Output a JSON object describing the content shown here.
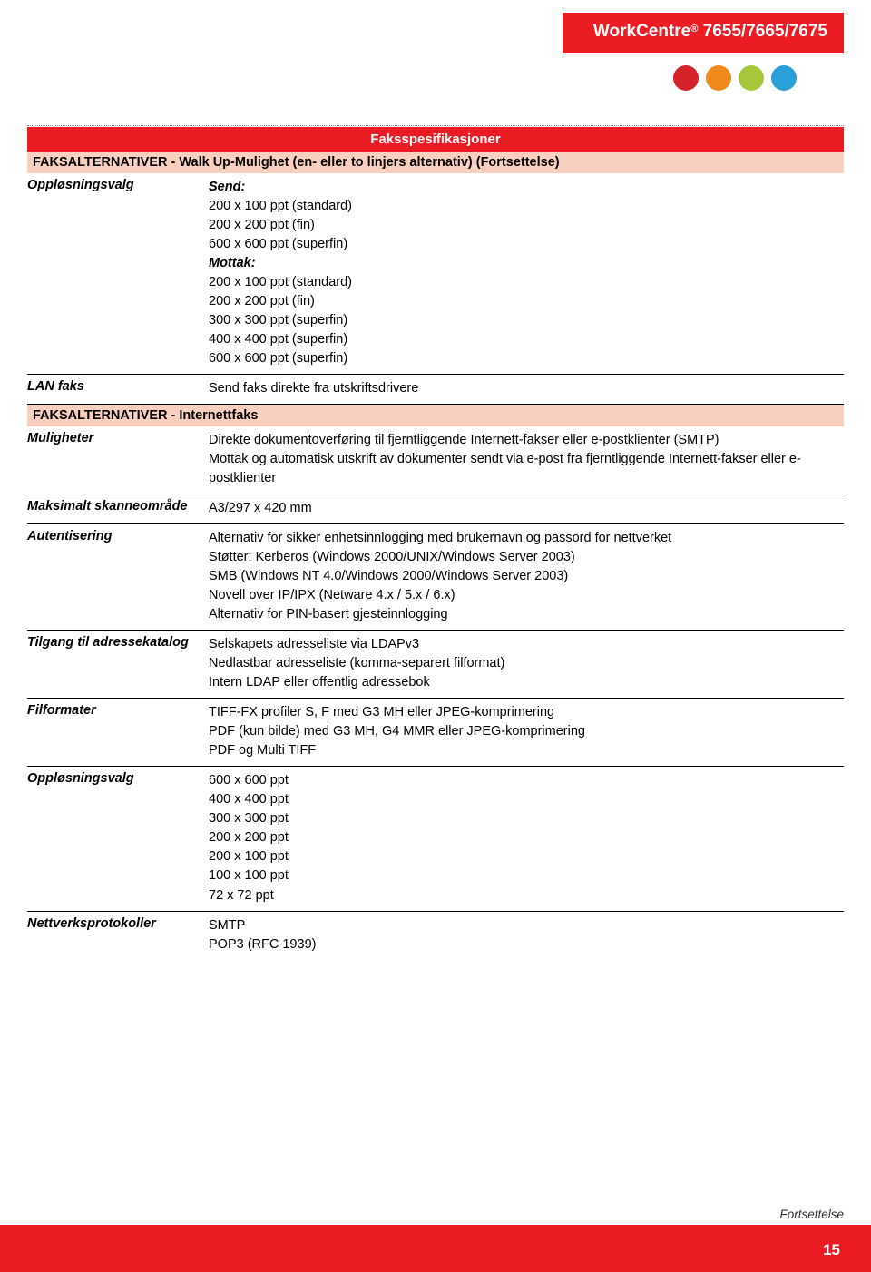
{
  "header": {
    "brand": "WorkCentre",
    "reg": "®",
    "models": " 7655/7665/7675",
    "dots": [
      "#d6232a",
      "#f08a1d",
      "#a7c73a",
      "#29a0d8"
    ]
  },
  "section_title": "Faksspesifikasjoner",
  "subheader1": "FAKSALTERNATIVER - Walk Up-Mulighet (en- eller to linjers alternativ) (Fortsettelse)",
  "rows1": [
    {
      "label": "Oppløsningsvalg",
      "lines": [
        {
          "bi": true,
          "text": "Send:"
        },
        {
          "text": "200 x 100 ppt (standard)"
        },
        {
          "text": "200 x 200 ppt (fin)"
        },
        {
          "text": "600 x 600 ppt (superfin)"
        },
        {
          "bi": true,
          "text": "Mottak:"
        },
        {
          "text": "200 x 100 ppt (standard)"
        },
        {
          "text": "200 x 200 ppt (fin)"
        },
        {
          "text": "300 x 300 ppt (superfin)"
        },
        {
          "text": "400 x 400 ppt (superfin)"
        },
        {
          "text": "600 x 600 ppt (superfin)"
        }
      ]
    },
    {
      "label": "LAN faks",
      "lines": [
        {
          "text": "Send faks direkte fra utskriftsdrivere"
        }
      ]
    }
  ],
  "subheader2": "FAKSALTERNATIVER - Internettfaks",
  "rows2": [
    {
      "label": "Muligheter",
      "lines": [
        {
          "text": "Direkte dokumentoverføring til fjerntliggende Internett-fakser eller e-postklienter (SMTP)"
        },
        {
          "text": "Mottak og automatisk utskrift av dokumenter sendt via e-post fra fjerntliggende Internett-fakser eller e-postklienter"
        }
      ]
    },
    {
      "label": "Maksimalt skanneområde",
      "lines": [
        {
          "text": "A3/297 x 420 mm"
        }
      ]
    },
    {
      "label": "Autentisering",
      "lines": [
        {
          "text": "Alternativ for sikker enhetsinnlogging med brukernavn og passord for nettverket"
        },
        {
          "text": "Støtter: Kerberos (Windows 2000/UNIX/Windows Server 2003)"
        },
        {
          "text": "SMB (Windows NT 4.0/Windows 2000/Windows Server 2003)"
        },
        {
          "text": "Novell over IP/IPX (Netware 4.x / 5.x / 6.x)"
        },
        {
          "text": "Alternativ for PIN-basert gjesteinnlogging"
        }
      ]
    },
    {
      "label": "Tilgang til adressekatalog",
      "lines": [
        {
          "text": "Selskapets adresseliste via LDAPv3"
        },
        {
          "text": "Nedlastbar adresseliste (komma-separert filformat)"
        },
        {
          "text": "Intern LDAP eller offentlig adressebok"
        }
      ]
    },
    {
      "label": "Filformater",
      "lines": [
        {
          "text": "TIFF-FX profiler S, F med G3 MH eller JPEG-komprimering"
        },
        {
          "text": "PDF (kun bilde) med G3 MH, G4 MMR eller JPEG-komprimering"
        },
        {
          "text": "PDF og Multi TIFF"
        }
      ]
    },
    {
      "label": "Oppløsningsvalg",
      "lines": [
        {
          "text": "600 x 600 ppt"
        },
        {
          "text": "400 x 400 ppt"
        },
        {
          "text": "300 x 300 ppt"
        },
        {
          "text": "200 x 200 ppt"
        },
        {
          "text": "200 x 100 ppt"
        },
        {
          "text": "100 x 100 ppt"
        },
        {
          "text": "72 x 72 ppt"
        }
      ]
    },
    {
      "label": "Nettverksprotokoller",
      "lines": [
        {
          "text": "SMTP"
        },
        {
          "text": "POP3 (RFC 1939)"
        }
      ],
      "noborder": true
    }
  ],
  "continuation": "Fortsettelse",
  "page_number": "15"
}
